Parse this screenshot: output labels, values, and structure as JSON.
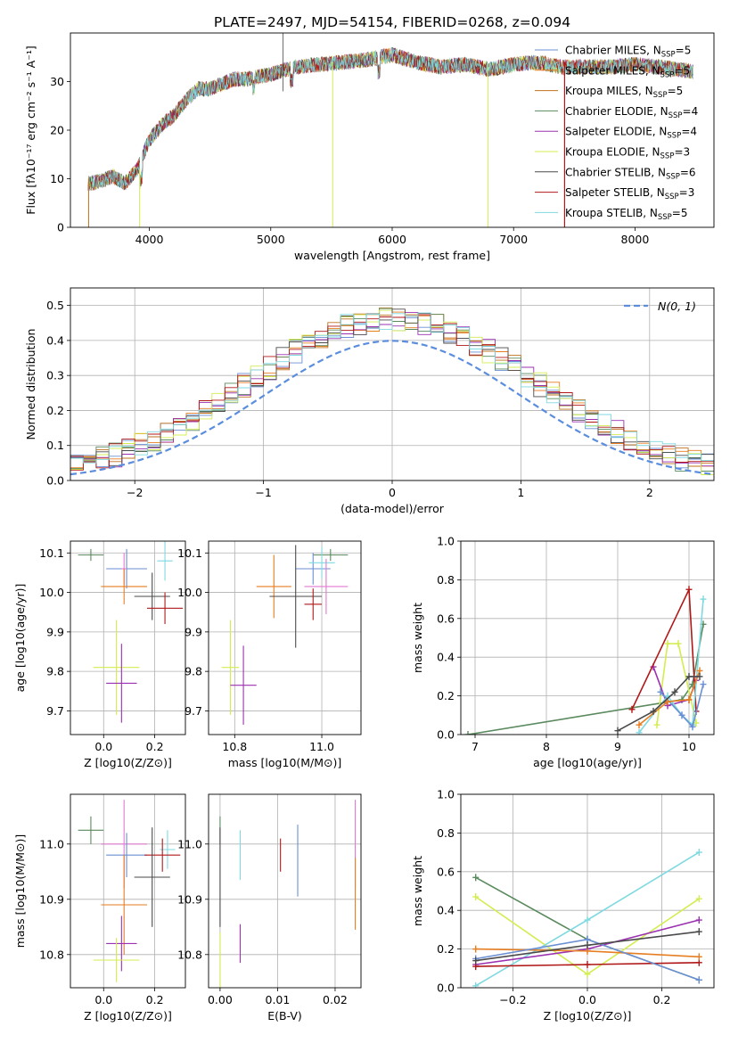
{
  "figure": {
    "title": "PLATE=2497, MJD=54154, FIBERID=0268, z=0.094"
  },
  "colors": {
    "chabrier_miles": "#6a8fd4",
    "salpeter_miles": "#e67e22",
    "kroupa_miles": "#c0711e",
    "chabrier_elodie": "#5a8a5e",
    "salpeter_elodie": "#9b30b0",
    "kroupa_elodie": "#d4ec50",
    "chabrier_stelib": "#4a4a4a",
    "salpeter_stelib": "#b01818",
    "kroupa_stelib": "#7fd9e0",
    "pink": "#e07ad0",
    "normal_curve": "#5b8dde",
    "grid": "#b0b0b0"
  },
  "chart_data": [
    {
      "id": "spectrum",
      "type": "line",
      "xlabel": "wavelength [Angstrom, rest frame]",
      "ylabel": "Flux [fλ10⁻¹⁷ erg cm⁻² s⁻¹ A⁻¹]",
      "xlim": [
        3350,
        8650
      ],
      "ylim": [
        0,
        40
      ],
      "xticks": [
        4000,
        5000,
        6000,
        7000,
        8000
      ],
      "yticks": [
        0,
        10,
        20,
        30
      ],
      "grid": false,
      "legend_position": "top-right",
      "continuum": {
        "x": [
          3500,
          3600,
          3700,
          3800,
          3900,
          4000,
          4100,
          4200,
          4300,
          4400,
          4500,
          4600,
          4700,
          4800,
          4900,
          5000,
          5200,
          5400,
          5600,
          5800,
          6000,
          6200,
          6400,
          6600,
          6800,
          7000,
          7200,
          7400,
          7600,
          7800,
          8000,
          8200,
          8500
        ],
        "y": [
          9,
          9.5,
          10.5,
          9,
          12,
          18,
          21,
          23,
          26,
          28.5,
          28.5,
          29.5,
          30.5,
          30.5,
          31,
          31.5,
          33,
          33.5,
          34,
          34.5,
          35.5,
          34,
          33,
          33.5,
          32.5,
          33.5,
          34,
          33,
          33,
          33,
          33.5,
          33,
          32
        ]
      },
      "series": [
        {
          "name": "Chabrier MILES, N_SSP=5",
          "color": "#6a8fd4"
        },
        {
          "name": "Salpeter MILES, N_SSP=5",
          "color": "#e67e22"
        },
        {
          "name": "Kroupa MILES, N_SSP=5",
          "color": "#c0711e"
        },
        {
          "name": "Chabrier ELODIE, N_SSP=4",
          "color": "#5a8a5e"
        },
        {
          "name": "Salpeter ELODIE, N_SSP=4",
          "color": "#9b30b0"
        },
        {
          "name": "Kroupa ELODIE, N_SSP=3",
          "color": "#d4ec50"
        },
        {
          "name": "Chabrier STELIB, N_SSP=6",
          "color": "#4a4a4a"
        },
        {
          "name": "Salpeter STELIB, N_SSP=3",
          "color": "#b01818"
        },
        {
          "name": "Kroupa STELIB, N_SSP=5",
          "color": "#7fd9e0"
        }
      ],
      "legend_labels": [
        {
          "pre": "Chabrier MILES, N",
          "sub": "SSP",
          "post": "=5"
        },
        {
          "pre": "Salpeter MILES, N",
          "sub": "SSP",
          "post": "=5"
        },
        {
          "pre": "Kroupa MILES, N",
          "sub": "SSP",
          "post": "=5"
        },
        {
          "pre": "Chabrier ELODIE, N",
          "sub": "SSP",
          "post": "=4"
        },
        {
          "pre": "Salpeter ELODIE, N",
          "sub": "SSP",
          "post": "=4"
        },
        {
          "pre": "Kroupa ELODIE, N",
          "sub": "SSP",
          "post": "=3"
        },
        {
          "pre": "Chabrier STELIB, N",
          "sub": "SSP",
          "post": "=6"
        },
        {
          "pre": "Salpeter STELIB, N",
          "sub": "SSP",
          "post": "=3"
        },
        {
          "pre": "Kroupa STELIB, N",
          "sub": "SSP",
          "post": "=5"
        }
      ]
    },
    {
      "id": "residuals",
      "type": "histogram",
      "xlabel": "(data-model)/error",
      "ylabel": "Normed distribution",
      "xlim": [
        -2.5,
        2.5
      ],
      "ylim": [
        0,
        0.55
      ],
      "xticks": [
        -2,
        -1,
        0,
        1,
        2
      ],
      "yticks": [
        0.0,
        0.1,
        0.2,
        0.3,
        0.4,
        0.5
      ],
      "grid": true,
      "bin_width": 0.1,
      "legend": {
        "label": "N(0, 1)",
        "position": "top-right"
      },
      "series_colors": [
        "#6a8fd4",
        "#e67e22",
        "#c0711e",
        "#5a8a5e",
        "#9b30b0",
        "#d4ec50",
        "#4a4a4a",
        "#b01818",
        "#7fd9e0"
      ]
    },
    {
      "id": "age_vs_Z",
      "type": "errorbar",
      "xlabel": "Z [log10(Z/Z⊙)]",
      "ylabel": "age [log10(age/yr)]",
      "xlim": [
        -0.13,
        0.32
      ],
      "ylim": [
        9.64,
        10.13
      ],
      "xticks": [
        0.0,
        0.2
      ],
      "yticks": [
        9.7,
        9.8,
        9.9,
        10.0,
        10.1
      ],
      "grid": true,
      "points": [
        {
          "color": "#5a8a5e",
          "x": -0.05,
          "xerr": 0.05,
          "y": 10.095,
          "yerr": 0.015
        },
        {
          "color": "#6a8fd4",
          "x": 0.09,
          "xerr": 0.08,
          "y": 10.06,
          "yerr": 0.05
        },
        {
          "color": "#e07ad0",
          "x": 0.08,
          "xerr": 0.01,
          "y": 10.06,
          "yerr": 0.04
        },
        {
          "color": "#7fd9e0",
          "x": 0.24,
          "xerr": 0.03,
          "y": 10.08,
          "yerr": 0.05
        },
        {
          "color": "#e67e22",
          "x": 0.08,
          "xerr": 0.09,
          "y": 10.015,
          "yerr": 0.045
        },
        {
          "color": "#4a4a4a",
          "x": 0.19,
          "xerr": 0.07,
          "y": 9.99,
          "yerr": 0.06
        },
        {
          "color": "#b01818",
          "x": 0.24,
          "xerr": 0.07,
          "y": 9.96,
          "yerr": 0.04
        },
        {
          "color": "#d4ec50",
          "x": 0.05,
          "xerr": 0.09,
          "y": 9.81,
          "yerr": 0.12
        },
        {
          "color": "#9b30b0",
          "x": 0.07,
          "xerr": 0.06,
          "y": 9.77,
          "yerr": 0.1
        }
      ]
    },
    {
      "id": "age_vs_mass",
      "type": "errorbar",
      "xlabel": "mass [log10(M/M⊙)]",
      "xlim": [
        10.74,
        11.09
      ],
      "ylim": [
        9.64,
        10.13
      ],
      "xticks": [
        10.8,
        11.0
      ],
      "yticks": [
        9.7,
        9.8,
        9.9,
        10.0,
        10.1
      ],
      "grid": true,
      "points": [
        {
          "color": "#5a8a5e",
          "x": 11.02,
          "xerr": 0.04,
          "y": 10.095,
          "yerr": 0.015
        },
        {
          "color": "#6a8fd4",
          "x": 10.98,
          "xerr": 0.04,
          "y": 10.06,
          "yerr": 0.04
        },
        {
          "color": "#7fd9e0",
          "x": 11.0,
          "xerr": 0.03,
          "y": 10.075,
          "yerr": 0.04
        },
        {
          "color": "#e07ad0",
          "x": 11.01,
          "xerr": 0.05,
          "y": 10.015,
          "yerr": 0.07
        },
        {
          "color": "#e67e22",
          "x": 10.89,
          "xerr": 0.04,
          "y": 10.015,
          "yerr": 0.08
        },
        {
          "color": "#4a4a4a",
          "x": 10.94,
          "xerr": 0.06,
          "y": 9.99,
          "yerr": 0.13
        },
        {
          "color": "#b01818",
          "x": 10.98,
          "xerr": 0.02,
          "y": 9.97,
          "yerr": 0.04
        },
        {
          "color": "#d4ec50",
          "x": 10.79,
          "xerr": 0.02,
          "y": 9.81,
          "yerr": 0.12
        },
        {
          "color": "#9b30b0",
          "x": 10.82,
          "xerr": 0.03,
          "y": 9.765,
          "yerr": 0.1
        }
      ]
    },
    {
      "id": "weight_vs_age",
      "type": "line",
      "xlabel": "age [log10(age/yr)]",
      "ylabel": "mass weight",
      "xlim": [
        6.8,
        10.35
      ],
      "ylim": [
        0,
        1.0
      ],
      "xticks": [
        7,
        8,
        9,
        10
      ],
      "yticks": [
        0.0,
        0.2,
        0.4,
        0.6,
        0.8,
        1.0
      ],
      "grid": true,
      "series": [
        {
          "color": "#5a8a5e",
          "x": [
            6.9,
            9.9,
            10.05,
            10.2
          ],
          "y": [
            0.0,
            0.18,
            0.26,
            0.57
          ]
        },
        {
          "color": "#d4ec50",
          "x": [
            9.55,
            9.7,
            9.85,
            10.1
          ],
          "y": [
            0.05,
            0.47,
            0.47,
            0.06
          ]
        },
        {
          "color": "#9b30b0",
          "x": [
            9.5,
            9.7,
            10.0,
            10.1
          ],
          "y": [
            0.35,
            0.15,
            0.18,
            0.28
          ]
        },
        {
          "color": "#b01818",
          "x": [
            9.2,
            10.0,
            10.1
          ],
          "y": [
            0.13,
            0.75,
            0.12
          ]
        },
        {
          "color": "#7fd9e0",
          "x": [
            9.3,
            9.7,
            9.9,
            10.05,
            10.2
          ],
          "y": [
            0.01,
            0.2,
            0.1,
            0.05,
            0.7
          ]
        },
        {
          "color": "#6a8fd4",
          "x": [
            9.6,
            9.9,
            10.05,
            10.2
          ],
          "y": [
            0.22,
            0.1,
            0.04,
            0.26
          ]
        },
        {
          "color": "#e67e22",
          "x": [
            9.3,
            9.7,
            10.0,
            10.15
          ],
          "y": [
            0.05,
            0.17,
            0.18,
            0.33
          ]
        },
        {
          "color": "#4a4a4a",
          "x": [
            9.0,
            9.5,
            9.8,
            10.0,
            10.15
          ],
          "y": [
            0.02,
            0.12,
            0.22,
            0.3,
            0.3
          ]
        }
      ]
    },
    {
      "id": "mass_vs_Z",
      "type": "errorbar",
      "xlabel": "Z [log10(Z/Z⊙)]",
      "ylabel": "mass [log10(M/M⊙)]",
      "xlim": [
        -0.13,
        0.32
      ],
      "ylim": [
        10.74,
        11.09
      ],
      "xticks": [
        0.0,
        0.2
      ],
      "yticks": [
        10.8,
        10.9,
        11.0
      ],
      "grid": true,
      "points": [
        {
          "color": "#5a8a5e",
          "x": -0.05,
          "xerr": 0.05,
          "y": 11.025,
          "yerr": 0.025
        },
        {
          "color": "#e07ad0",
          "x": 0.08,
          "xerr": 0.09,
          "y": 11.0,
          "yerr": 0.08
        },
        {
          "color": "#6a8fd4",
          "x": 0.09,
          "xerr": 0.08,
          "y": 10.98,
          "yerr": 0.04
        },
        {
          "color": "#7fd9e0",
          "x": 0.25,
          "xerr": 0.03,
          "y": 10.99,
          "yerr": 0.035
        },
        {
          "color": "#b01818",
          "x": 0.23,
          "xerr": 0.07,
          "y": 10.98,
          "yerr": 0.03
        },
        {
          "color": "#4a4a4a",
          "x": 0.19,
          "xerr": 0.07,
          "y": 10.94,
          "yerr": 0.09
        },
        {
          "color": "#e67e22",
          "x": 0.08,
          "xerr": 0.09,
          "y": 10.89,
          "yerr": 0.09
        },
        {
          "color": "#9b30b0",
          "x": 0.07,
          "xerr": 0.06,
          "y": 10.82,
          "yerr": 0.05
        },
        {
          "color": "#d4ec50",
          "x": 0.05,
          "xerr": 0.09,
          "y": 10.79,
          "yerr": 0.04
        }
      ]
    },
    {
      "id": "mass_vs_EBV",
      "type": "errorbar",
      "xlabel": "E(B-V)",
      "xlim": [
        -0.002,
        0.0245
      ],
      "ylim": [
        10.74,
        11.09
      ],
      "xticks": [
        0.0,
        0.01,
        0.02
      ],
      "yticks": [
        10.8,
        10.9,
        11.0
      ],
      "grid": true,
      "points": [
        {
          "color": "#5a8a5e",
          "x": 0.0,
          "xerr": 0,
          "y": 11.025,
          "yerr": 0.025
        },
        {
          "color": "#4a4a4a",
          "x": 0.0,
          "xerr": 0,
          "y": 10.94,
          "yerr": 0.09
        },
        {
          "color": "#d4ec50",
          "x": 0.0,
          "xerr": 0,
          "y": 10.79,
          "yerr": 0.05
        },
        {
          "color": "#7fd9e0",
          "x": 0.0035,
          "xerr": 0,
          "y": 10.98,
          "yerr": 0.045
        },
        {
          "color": "#9b30b0",
          "x": 0.0035,
          "xerr": 0,
          "y": 10.82,
          "yerr": 0.035
        },
        {
          "color": "#b01818",
          "x": 0.0105,
          "xerr": 0,
          "y": 10.98,
          "yerr": 0.03
        },
        {
          "color": "#6a8fd4",
          "x": 0.0135,
          "xerr": 0,
          "y": 10.97,
          "yerr": 0.065
        },
        {
          "color": "#e07ad0",
          "x": 0.0235,
          "xerr": 0,
          "y": 11.0,
          "yerr": 0.08
        },
        {
          "color": "#e67e22",
          "x": 0.0235,
          "xerr": 0,
          "y": 10.91,
          "yerr": 0.065
        }
      ]
    },
    {
      "id": "weight_vs_Z",
      "type": "line",
      "xlabel": "Z [log10(Z/Z⊙)]",
      "ylabel": "mass weight",
      "xlim": [
        -0.34,
        0.34
      ],
      "ylim": [
        0,
        1.0
      ],
      "xticks": [
        -0.2,
        0.0,
        0.2
      ],
      "yticks": [
        0.0,
        0.2,
        0.4,
        0.6,
        0.8,
        1.0
      ],
      "grid": true,
      "series": [
        {
          "color": "#5a8a5e",
          "x": [
            -0.3,
            0.0,
            0.3
          ],
          "y": [
            0.57,
            0.25,
            0.04
          ]
        },
        {
          "color": "#d4ec50",
          "x": [
            -0.3,
            0.0,
            0.3
          ],
          "y": [
            0.47,
            0.07,
            0.46
          ]
        },
        {
          "color": "#7fd9e0",
          "x": [
            -0.3,
            0.0,
            0.3
          ],
          "y": [
            0.01,
            0.35,
            0.7
          ]
        },
        {
          "color": "#9b30b0",
          "x": [
            -0.3,
            0.0,
            0.3
          ],
          "y": [
            0.12,
            0.2,
            0.35
          ]
        },
        {
          "color": "#b01818",
          "x": [
            -0.3,
            0.0,
            0.3
          ],
          "y": [
            0.11,
            0.12,
            0.13
          ]
        },
        {
          "color": "#e67e22",
          "x": [
            -0.3,
            0.0,
            0.3
          ],
          "y": [
            0.2,
            0.19,
            0.16
          ]
        },
        {
          "color": "#6a8fd4",
          "x": [
            -0.3,
            0.0,
            0.3
          ],
          "y": [
            0.15,
            0.25,
            0.04
          ]
        },
        {
          "color": "#4a4a4a",
          "x": [
            -0.3,
            0.0,
            0.3
          ],
          "y": [
            0.14,
            0.22,
            0.29
          ]
        }
      ]
    }
  ]
}
